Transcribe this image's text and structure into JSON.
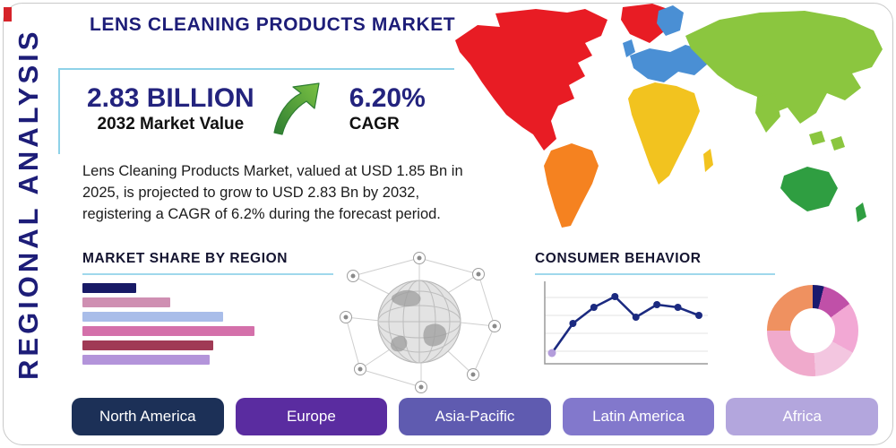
{
  "side_label": "REGIONAL ANALYSIS",
  "header": {
    "title": "LENS CLEANING PRODUCTS MARKET"
  },
  "theme": {
    "navy": "#1d1d78",
    "accent_teal": "#8fd2e8",
    "arrow_green": "#4caf50"
  },
  "stats": {
    "market_value": "2.83 BILLION",
    "market_value_label": "2032 Market Value",
    "cagr": "6.20%",
    "cagr_label": "CAGR"
  },
  "description": "Lens Cleaning Products Market, valued at USD 1.85 Bn in 2025, is projected to grow to USD 2.83 Bn by 2032, registering a CAGR of 6.2% during the forecast period.",
  "map": {
    "regions": [
      {
        "id": "north-america",
        "name": "North America",
        "color": "#e81c24"
      },
      {
        "id": "south-america",
        "name": "South America",
        "color": "#f58220"
      },
      {
        "id": "europe",
        "name": "Europe",
        "color": "#4a8fd4"
      },
      {
        "id": "africa",
        "name": "Africa",
        "color": "#f2c31f"
      },
      {
        "id": "asia",
        "name": "Asia",
        "color": "#8bc63f"
      },
      {
        "id": "australia",
        "name": "Australia",
        "color": "#2f9e41"
      }
    ]
  },
  "chart_data": [
    {
      "type": "bar",
      "title": "MARKET SHARE BY REGION",
      "orientation": "horizontal",
      "categories": [
        "",
        "",
        "",
        "",
        "",
        ""
      ],
      "values": [
        31,
        51,
        82,
        100,
        76,
        74
      ],
      "colors": [
        "#181a66",
        "#cf8fb2",
        "#a9bde9",
        "#d470aa",
        "#a03a55",
        "#b394da"
      ],
      "xlim": [
        0,
        100
      ],
      "note": "relative bar lengths, no value labels shown"
    },
    {
      "type": "line",
      "title": "CONSUMER BEHAVIOR",
      "x": [
        1,
        2,
        3,
        4,
        5,
        6,
        7,
        8
      ],
      "values": [
        1.0,
        4.3,
        6.1,
        7.3,
        5.0,
        6.4,
        6.1,
        5.2
      ],
      "ylim": [
        0,
        8
      ],
      "line_color": "#1b2a80",
      "first_point_color": "#b39ddb",
      "grid": true,
      "note": "relative values, no tick labels shown"
    },
    {
      "type": "pie",
      "donut": true,
      "values": [
        4,
        11,
        18,
        16,
        26,
        25
      ],
      "colors": [
        "#1a1a6e",
        "#c050a8",
        "#f2a8d4",
        "#f3c6e0",
        "#f0aacc",
        "#ef9160"
      ],
      "note": "relative slice sizes, no labels shown"
    }
  ],
  "region_buttons": [
    {
      "label": "North America",
      "color": "#1c3057"
    },
    {
      "label": "Europe",
      "color": "#5a2ca0"
    },
    {
      "label": "Asia-Pacific",
      "color": "#5f5bb0"
    },
    {
      "label": "Latin America",
      "color": "#8278cc"
    },
    {
      "label": "Africa",
      "color": "#b3a6dd"
    }
  ]
}
